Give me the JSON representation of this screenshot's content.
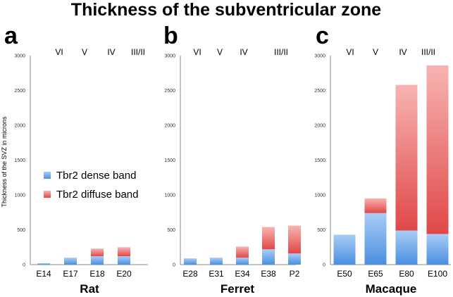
{
  "colors": {
    "dense_top": "#a9cdf5",
    "dense_bottom": "#4a8fe0",
    "diffuse_top": "#f7b4b2",
    "diffuse_bottom": "#e04848"
  },
  "chart_data": {
    "type": "bar",
    "stacked": true,
    "title": "Thickness of the subventricular zone",
    "ylabel": "Thickness of the SVZ in microns",
    "ylim": [
      0,
      3000
    ],
    "yticks": [
      "0",
      "500",
      "1000",
      "1500",
      "2000",
      "2500",
      "3000"
    ],
    "grid": false,
    "legend": [
      {
        "name": "Tbr2 dense band",
        "color": "dense"
      },
      {
        "name": "Tbr2 diffuse band",
        "color": "diffuse"
      }
    ],
    "panels": [
      {
        "letter": "a",
        "species": "Rat",
        "layers": [
          "VI",
          "V",
          "IV",
          "III/II"
        ],
        "categories": [
          "E14",
          "E17",
          "E18",
          "E20"
        ],
        "series": [
          {
            "name": "Tbr2 dense band",
            "values": [
              20,
              100,
              120,
              120
            ]
          },
          {
            "name": "Tbr2 diffuse band",
            "values": [
              0,
              0,
              110,
              130
            ]
          }
        ]
      },
      {
        "letter": "b",
        "species": "Ferret",
        "layers": [
          "VI",
          "V",
          "IV",
          "III/II"
        ],
        "categories": [
          "E28",
          "E31",
          "E34",
          "E38",
          "P2"
        ],
        "series": [
          {
            "name": "Tbr2 dense band",
            "values": [
              90,
              100,
              100,
              220,
              160
            ]
          },
          {
            "name": "Tbr2 diffuse band",
            "values": [
              0,
              0,
              160,
              320,
              400
            ]
          }
        ]
      },
      {
        "letter": "c",
        "species": "Macaque",
        "layers": [
          "VI",
          "V",
          "IV",
          "III/II"
        ],
        "categories": [
          "E50",
          "E65",
          "E80",
          "E100"
        ],
        "series": [
          {
            "name": "Tbr2 dense band",
            "values": [
              430,
              740,
              490,
              440
            ]
          },
          {
            "name": "Tbr2 diffuse band",
            "values": [
              0,
              210,
              2090,
              2420
            ]
          }
        ]
      }
    ]
  }
}
